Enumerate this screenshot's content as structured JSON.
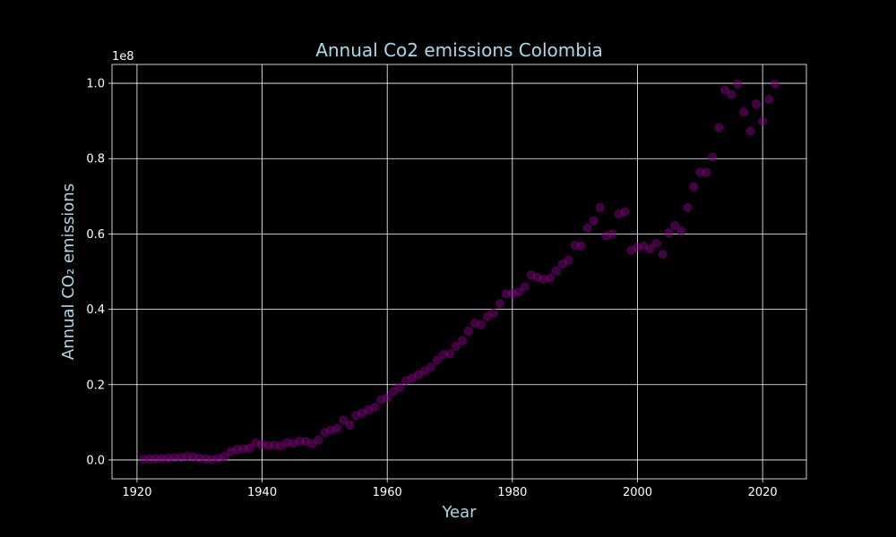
{
  "chart_data": {
    "type": "scatter",
    "title": "Annual Co2 emissions Colombia",
    "xlabel": "Year",
    "ylabel": "Annual CO₂ emissions",
    "y_offset_text": "1e8",
    "xlim": [
      1916,
      2027
    ],
    "ylim": [
      -5000000,
      105000000
    ],
    "x_ticks": [
      1920,
      1940,
      1960,
      1980,
      2000,
      2020
    ],
    "x_tick_labels": [
      "1920",
      "1940",
      "1960",
      "1980",
      "2000",
      "2020"
    ],
    "y_ticks": [
      0,
      20000000,
      40000000,
      60000000,
      80000000,
      100000000
    ],
    "y_tick_labels": [
      "0.0",
      "0.2",
      "0.4",
      "0.6",
      "0.8",
      "1.0"
    ],
    "grid": true,
    "marker_color": "#800080",
    "marker_alpha": 0.5,
    "label_color": "#add8e6",
    "background": "#000000",
    "x": [
      1921,
      1922,
      1923,
      1924,
      1925,
      1926,
      1927,
      1928,
      1929,
      1930,
      1931,
      1932,
      1933,
      1934,
      1935,
      1936,
      1937,
      1938,
      1939,
      1940,
      1941,
      1942,
      1943,
      1944,
      1945,
      1946,
      1947,
      1948,
      1949,
      1950,
      1951,
      1952,
      1953,
      1954,
      1955,
      1956,
      1957,
      1958,
      1959,
      1960,
      1961,
      1962,
      1963,
      1964,
      1965,
      1966,
      1967,
      1968,
      1969,
      1970,
      1971,
      1972,
      1973,
      1974,
      1975,
      1976,
      1977,
      1978,
      1979,
      1980,
      1981,
      1982,
      1983,
      1984,
      1985,
      1986,
      1987,
      1988,
      1989,
      1990,
      1991,
      1992,
      1993,
      1994,
      1995,
      1996,
      1997,
      1998,
      1999,
      2000,
      2001,
      2002,
      2003,
      2004,
      2005,
      2006,
      2007,
      2008,
      2009,
      2010,
      2011,
      2012,
      2013,
      2014,
      2015,
      2016,
      2017,
      2018,
      2019,
      2020,
      2021,
      2022
    ],
    "y": [
      200000,
      300000,
      400000,
      400000,
      500000,
      600000,
      700000,
      1000000,
      800000,
      500000,
      300000,
      200000,
      500000,
      900000,
      2300000,
      2800000,
      3000000,
      3200000,
      4500000,
      4100000,
      3800000,
      3900000,
      3700000,
      4600000,
      4400000,
      5000000,
      4900000,
      4300000,
      5300000,
      7300000,
      7900000,
      8400000,
      10600000,
      9300000,
      11800000,
      12500000,
      13300000,
      14000000,
      16000000,
      16500000,
      18200000,
      19300000,
      21100000,
      21800000,
      22700000,
      23600000,
      24700000,
      26500000,
      28000000,
      28200000,
      30200000,
      31700000,
      34200000,
      36300000,
      36000000,
      38100000,
      39000000,
      41500000,
      44100000,
      44200000,
      44600000,
      46000000,
      49100000,
      48500000,
      48000000,
      48300000,
      50200000,
      52000000,
      53000000,
      57000000,
      56800000,
      61600000,
      63500000,
      67000000,
      59500000,
      60000000,
      65300000,
      65900000,
      55700000,
      56500000,
      56800000,
      56000000,
      57500000,
      54600000,
      60300000,
      62200000,
      60800000,
      67000000,
      72500000,
      76400000,
      76300000,
      80400000,
      88200000,
      98200000,
      97000000,
      99800000,
      92400000,
      87300000,
      94500000,
      89900000,
      95700000,
      99800000
    ]
  }
}
